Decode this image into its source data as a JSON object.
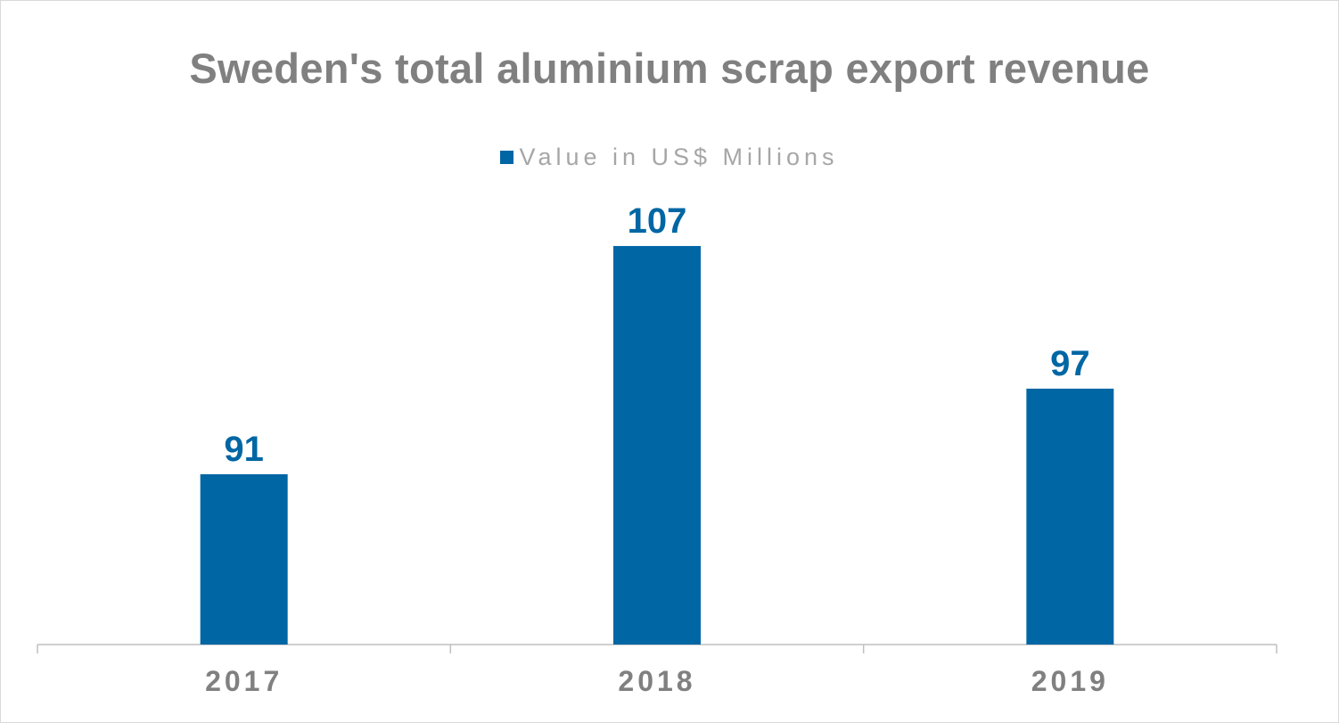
{
  "chart_data": {
    "type": "bar",
    "title": "Sweden's total aluminium scrap export revenue",
    "categories": [
      "2017",
      "2018",
      "2019"
    ],
    "series": [
      {
        "name": "Value in US$ Millions",
        "values": [
          91,
          107,
          97
        ]
      }
    ],
    "data_labels": [
      "91",
      "107",
      "97"
    ],
    "legend_position": "top",
    "grid": false,
    "xlabel": "",
    "ylabel": ""
  },
  "colors": {
    "bar": "#0066a4",
    "title": "#808080",
    "legend_text": "#a6a6a6",
    "axis": "#bfbfbf"
  }
}
